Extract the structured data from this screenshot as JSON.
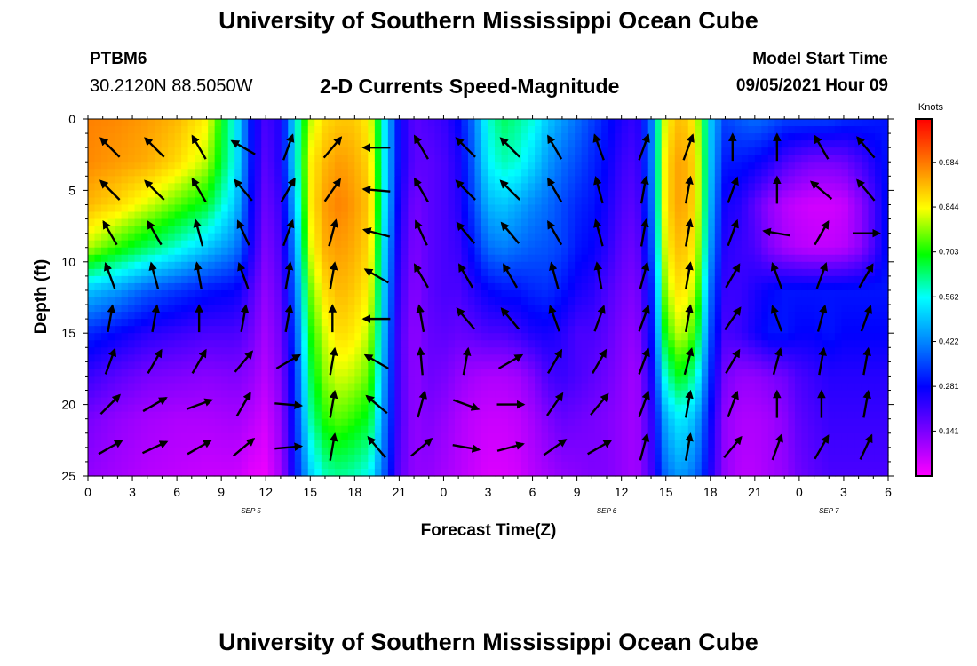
{
  "header": {
    "title": "University of Southern Mississippi Ocean Cube",
    "station_id": "PTBM6",
    "station_coords": "30.2120N  88.5050W",
    "subtitle": "2-D Currents Speed-Magnitude",
    "model_start_label": "Model Start Time",
    "model_start_value": "09/05/2021 Hour 09"
  },
  "footer": {
    "title": "University of Southern Mississippi Ocean Cube"
  },
  "chart_data": {
    "type": "heatmap",
    "title": "2-D Currents Speed-Magnitude",
    "xlabel": "Forecast Time(Z)",
    "ylabel": "Depth (ft)",
    "x_tick_labels": [
      "0",
      "3",
      "6",
      "9",
      "12",
      "15",
      "18",
      "21",
      "0",
      "3",
      "6",
      "9",
      "12",
      "15",
      "18",
      "21",
      "0",
      "3",
      "6"
    ],
    "date_labels": [
      {
        "text": "SEP 5",
        "hour": 11
      },
      {
        "text": "SEP 6",
        "hour": 35
      },
      {
        "text": "SEP 7",
        "hour": 50
      }
    ],
    "y_ticks": [
      0,
      5,
      10,
      15,
      20,
      25
    ],
    "xlim": [
      0,
      54
    ],
    "ylim": [
      0,
      25
    ],
    "colorbar": {
      "unit_label": "Knots",
      "ticks": [
        "0.984",
        "0.844",
        "0.703",
        "0.562",
        "0.422",
        "0.281",
        "0.141"
      ],
      "range": [
        0.0,
        1.12
      ]
    },
    "speed_field_knots": {
      "hours": [
        0,
        2,
        4,
        6,
        8,
        10,
        11,
        12,
        13,
        14,
        15,
        16,
        17,
        18,
        19,
        20,
        21,
        22,
        23,
        24,
        25,
        26,
        27,
        28,
        29,
        30,
        31,
        32,
        33,
        34,
        35,
        36,
        37,
        38,
        39,
        40,
        41,
        42,
        43,
        44,
        45,
        46,
        47,
        48,
        49,
        50,
        51,
        52,
        53,
        54
      ],
      "depths_ft": [
        0,
        3,
        6,
        9,
        12,
        15,
        18,
        21,
        25
      ],
      "rows": [
        [
          0.98,
          0.97,
          0.95,
          0.92,
          0.85,
          0.55,
          0.3,
          0.2,
          0.25,
          0.55,
          0.8,
          0.88,
          0.9,
          0.9,
          0.85,
          0.55,
          0.28,
          0.18,
          0.2,
          0.22,
          0.28,
          0.4,
          0.58,
          0.65,
          0.62,
          0.58,
          0.5,
          0.45,
          0.4,
          0.35,
          0.3,
          0.25,
          0.22,
          0.4,
          0.85,
          0.92,
          0.85,
          0.5,
          0.35,
          0.38,
          0.4,
          0.38,
          0.35,
          0.35,
          0.35,
          0.35,
          0.33,
          0.32,
          0.31,
          0.3
        ],
        [
          0.97,
          0.95,
          0.93,
          0.88,
          0.8,
          0.55,
          0.3,
          0.18,
          0.25,
          0.55,
          0.85,
          0.92,
          0.95,
          0.93,
          0.88,
          0.55,
          0.28,
          0.18,
          0.18,
          0.2,
          0.25,
          0.38,
          0.55,
          0.6,
          0.58,
          0.52,
          0.45,
          0.4,
          0.36,
          0.32,
          0.28,
          0.22,
          0.2,
          0.4,
          0.88,
          0.95,
          0.88,
          0.5,
          0.3,
          0.3,
          0.28,
          0.25,
          0.2,
          0.17,
          0.15,
          0.15,
          0.16,
          0.2,
          0.25,
          0.3
        ],
        [
          0.92,
          0.88,
          0.82,
          0.75,
          0.68,
          0.5,
          0.28,
          0.16,
          0.22,
          0.5,
          0.85,
          0.95,
          0.98,
          0.95,
          0.9,
          0.55,
          0.26,
          0.15,
          0.18,
          0.2,
          0.24,
          0.35,
          0.48,
          0.5,
          0.47,
          0.43,
          0.4,
          0.36,
          0.32,
          0.3,
          0.26,
          0.2,
          0.18,
          0.38,
          0.88,
          0.95,
          0.88,
          0.48,
          0.26,
          0.24,
          0.18,
          0.12,
          0.08,
          0.06,
          0.05,
          0.05,
          0.06,
          0.12,
          0.2,
          0.3
        ],
        [
          0.8,
          0.72,
          0.65,
          0.58,
          0.5,
          0.42,
          0.26,
          0.14,
          0.2,
          0.45,
          0.82,
          0.93,
          0.95,
          0.93,
          0.88,
          0.52,
          0.24,
          0.14,
          0.18,
          0.2,
          0.22,
          0.3,
          0.4,
          0.42,
          0.4,
          0.38,
          0.37,
          0.35,
          0.3,
          0.28,
          0.24,
          0.18,
          0.16,
          0.35,
          0.85,
          0.92,
          0.85,
          0.45,
          0.24,
          0.22,
          0.2,
          0.14,
          0.1,
          0.08,
          0.07,
          0.07,
          0.08,
          0.12,
          0.2,
          0.3
        ],
        [
          0.5,
          0.45,
          0.38,
          0.34,
          0.3,
          0.28,
          0.2,
          0.12,
          0.18,
          0.4,
          0.75,
          0.88,
          0.92,
          0.9,
          0.85,
          0.5,
          0.22,
          0.13,
          0.18,
          0.2,
          0.2,
          0.24,
          0.28,
          0.3,
          0.3,
          0.32,
          0.33,
          0.3,
          0.26,
          0.24,
          0.2,
          0.16,
          0.14,
          0.3,
          0.8,
          0.88,
          0.8,
          0.4,
          0.22,
          0.22,
          0.25,
          0.28,
          0.3,
          0.3,
          0.3,
          0.3,
          0.3,
          0.3,
          0.3,
          0.3
        ],
        [
          0.32,
          0.28,
          0.24,
          0.22,
          0.2,
          0.2,
          0.16,
          0.1,
          0.16,
          0.36,
          0.7,
          0.82,
          0.88,
          0.86,
          0.8,
          0.48,
          0.2,
          0.12,
          0.17,
          0.18,
          0.17,
          0.18,
          0.2,
          0.2,
          0.22,
          0.25,
          0.26,
          0.24,
          0.2,
          0.2,
          0.18,
          0.14,
          0.12,
          0.28,
          0.72,
          0.82,
          0.72,
          0.36,
          0.2,
          0.22,
          0.26,
          0.3,
          0.3,
          0.28,
          0.28,
          0.3,
          0.28,
          0.28,
          0.28,
          0.28
        ],
        [
          0.22,
          0.18,
          0.15,
          0.14,
          0.13,
          0.14,
          0.12,
          0.08,
          0.14,
          0.33,
          0.65,
          0.78,
          0.82,
          0.8,
          0.75,
          0.45,
          0.2,
          0.12,
          0.16,
          0.15,
          0.12,
          0.1,
          0.09,
          0.09,
          0.1,
          0.14,
          0.2,
          0.22,
          0.2,
          0.18,
          0.16,
          0.13,
          0.1,
          0.25,
          0.6,
          0.7,
          0.6,
          0.32,
          0.15,
          0.12,
          0.12,
          0.14,
          0.16,
          0.2,
          0.22,
          0.24,
          0.24,
          0.24,
          0.24,
          0.24
        ],
        [
          0.15,
          0.12,
          0.1,
          0.09,
          0.09,
          0.1,
          0.08,
          0.05,
          0.12,
          0.32,
          0.6,
          0.72,
          0.75,
          0.72,
          0.68,
          0.42,
          0.2,
          0.12,
          0.14,
          0.12,
          0.09,
          0.07,
          0.06,
          0.06,
          0.07,
          0.1,
          0.14,
          0.17,
          0.16,
          0.15,
          0.14,
          0.12,
          0.1,
          0.22,
          0.48,
          0.55,
          0.48,
          0.28,
          0.12,
          0.09,
          0.09,
          0.1,
          0.13,
          0.18,
          0.2,
          0.22,
          0.22,
          0.22,
          0.22,
          0.22
        ],
        [
          0.12,
          0.1,
          0.08,
          0.07,
          0.06,
          0.06,
          0.03,
          0.02,
          0.1,
          0.3,
          0.5,
          0.6,
          0.62,
          0.6,
          0.56,
          0.38,
          0.18,
          0.12,
          0.12,
          0.1,
          0.08,
          0.06,
          0.04,
          0.04,
          0.05,
          0.08,
          0.1,
          0.12,
          0.13,
          0.14,
          0.14,
          0.12,
          0.1,
          0.2,
          0.4,
          0.45,
          0.4,
          0.25,
          0.12,
          0.08,
          0.08,
          0.1,
          0.12,
          0.16,
          0.18,
          0.2,
          0.2,
          0.2,
          0.2,
          0.2
        ]
      ]
    },
    "vector_grid": {
      "hours": [
        1.5,
        4.5,
        7.5,
        10.5,
        13.5,
        16.5,
        19.5,
        22.5,
        25.5,
        28.5,
        31.5,
        34.5,
        37.5,
        40.5,
        43.5,
        46.5,
        49.5,
        52.5
      ],
      "depths_ft": [
        2,
        5,
        8,
        11,
        14,
        17,
        20,
        23
      ],
      "directions_deg": [
        [
          315,
          315,
          330,
          300,
          20,
          40,
          270,
          330,
          315,
          315,
          330,
          340,
          20,
          20,
          0,
          0,
          330,
          320
        ],
        [
          315,
          315,
          330,
          320,
          30,
          35,
          275,
          330,
          315,
          315,
          330,
          345,
          10,
          10,
          20,
          0,
          310,
          320
        ],
        [
          330,
          330,
          345,
          335,
          20,
          15,
          285,
          335,
          320,
          320,
          330,
          345,
          10,
          10,
          20,
          280,
          30,
          90
        ],
        [
          340,
          345,
          350,
          340,
          10,
          10,
          300,
          330,
          330,
          330,
          345,
          350,
          15,
          10,
          30,
          340,
          20,
          30
        ],
        [
          10,
          10,
          0,
          10,
          10,
          0,
          270,
          350,
          320,
          320,
          340,
          20,
          20,
          10,
          35,
          340,
          15,
          20
        ],
        [
          20,
          30,
          30,
          40,
          60,
          10,
          300,
          355,
          10,
          60,
          30,
          30,
          20,
          15,
          30,
          15,
          10,
          10
        ],
        [
          45,
          60,
          70,
          30,
          95,
          10,
          310,
          15,
          110,
          90,
          35,
          40,
          20,
          10,
          20,
          0,
          0,
          10
        ],
        [
          60,
          65,
          60,
          50,
          85,
          10,
          320,
          50,
          100,
          75,
          55,
          60,
          15,
          10,
          40,
          20,
          30,
          25
        ]
      ]
    }
  }
}
